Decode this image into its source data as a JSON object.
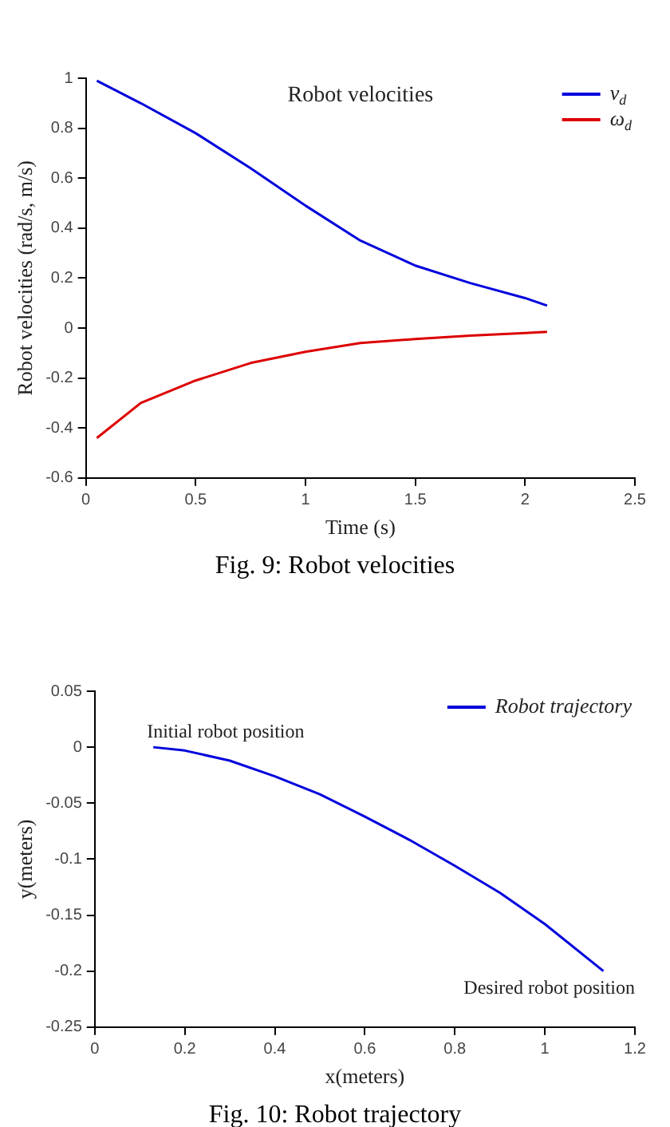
{
  "chart_data": [
    {
      "type": "line",
      "title": "Robot velocities",
      "xlabel": "Time (s)",
      "ylabel": "Robot velocities (rad/s, m/s)",
      "x": [
        0.05,
        0.25,
        0.5,
        0.75,
        1.0,
        1.25,
        1.5,
        1.75,
        2.0,
        2.1
      ],
      "series": [
        {
          "name": "v$_{d}$",
          "color": "#0000dd",
          "values": [
            0.99,
            0.9,
            0.78,
            0.64,
            0.49,
            0.35,
            0.25,
            0.18,
            0.12,
            0.09
          ]
        },
        {
          "name": "ω$_{d}$",
          "color": "#dd0000",
          "values": [
            -0.44,
            -0.3,
            -0.21,
            -0.14,
            -0.095,
            -0.06,
            -0.044,
            -0.03,
            -0.02,
            -0.015
          ]
        }
      ],
      "xlim": [
        0,
        2.5
      ],
      "xticks": [
        0,
        0.5,
        1,
        1.5,
        2,
        2.5
      ],
      "ylim": [
        -0.6,
        1
      ],
      "yticks": [
        -0.6,
        -0.4,
        -0.2,
        0,
        0.2,
        0.4,
        0.6,
        0.8,
        1
      ],
      "grid": false,
      "legend": "top right",
      "marker": "none",
      "line_style": "solid",
      "annotations": [
        "Fig. 9:  Robot velocities"
      ]
    },
    {
      "type": "line",
      "xlabel": "x(meters)",
      "ylabel": "y(meters)",
      "x": [
        0.13,
        0.2,
        0.3,
        0.4,
        0.5,
        0.6,
        0.7,
        0.8,
        0.9,
        1.0,
        1.13
      ],
      "series": [
        {
          "name": "Robot trajectory",
          "color": "#0000dd",
          "values": [
            0,
            -0.003,
            -0.012,
            -0.026,
            -0.042,
            -0.062,
            -0.083,
            -0.106,
            -0.13,
            -0.158,
            -0.2
          ]
        }
      ],
      "xlim": [
        0,
        1.2
      ],
      "xticks": [
        0,
        0.2,
        0.4,
        0.6,
        0.8,
        1,
        1.2
      ],
      "ylim": [
        -0.25,
        0.05
      ],
      "yticks": [
        -0.25,
        -0.2,
        -0.15,
        -0.1,
        -0.05,
        0,
        0.05
      ],
      "grid": false,
      "legend": "top right",
      "marker": "none",
      "line_style": "solid",
      "annotations": [
        {
          "text": "Initial robot position",
          "x": 0.13,
          "y": 0
        },
        {
          "text": "Desired robot position",
          "x": 1.13,
          "y": -0.2
        },
        "Fig. 10:  Robot trajectory"
      ]
    }
  ]
}
